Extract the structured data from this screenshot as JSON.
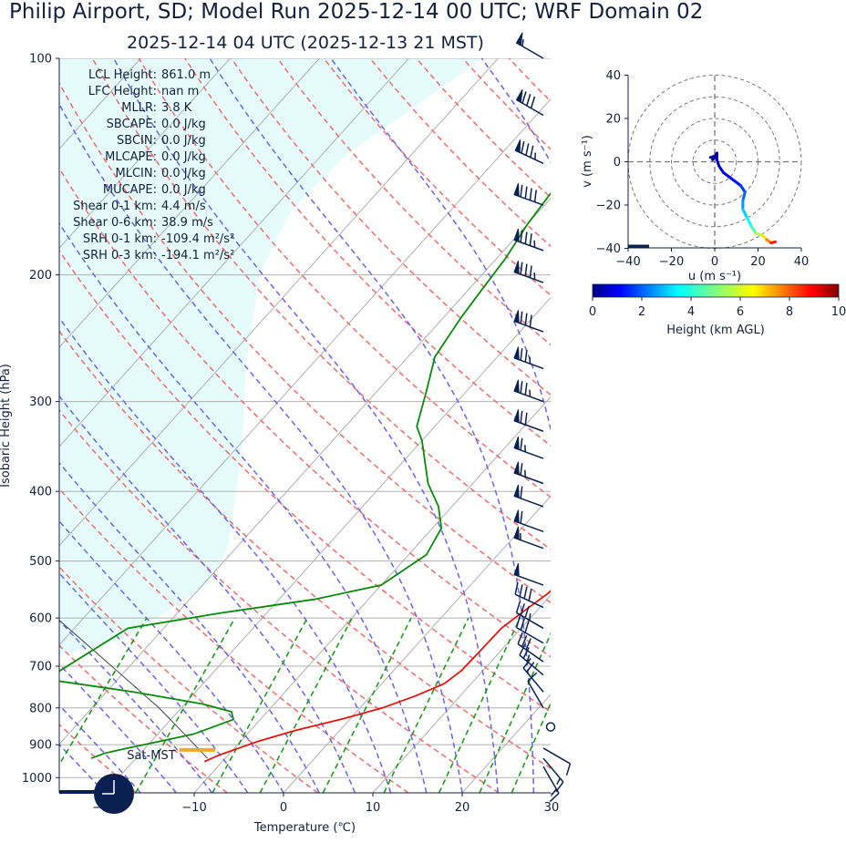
{
  "title": "Philip Airport, SD; Model Run 2025-12-14 00 UTC; WRF Domain 02",
  "subtitle": "2025-12-14 04 UTC  (2025-12-13 21 MST)",
  "chart_data": [
    {
      "type": "line",
      "name": "skew-t",
      "xlabel": "Temperature (℃)",
      "ylabel": "Isobaric Height (hPa)",
      "xlim": [
        -25,
        30
      ],
      "ylim": [
        1050,
        100
      ],
      "x_ticks": [
        "−20",
        "−10",
        "0",
        "10",
        "20",
        "30"
      ],
      "y_ticks": [
        "100",
        "200",
        "300",
        "400",
        "500",
        "600",
        "700",
        "800",
        "900",
        "1000"
      ],
      "grid": true,
      "temperature": [
        {
          "p": 950,
          "t": -12
        },
        {
          "p": 930,
          "t": -11
        },
        {
          "p": 910,
          "t": -9.5
        },
        {
          "p": 890,
          "t": -8
        },
        {
          "p": 860,
          "t": -5
        },
        {
          "p": 830,
          "t": -1
        },
        {
          "p": 800,
          "t": 2.5
        },
        {
          "p": 770,
          "t": 5
        },
        {
          "p": 740,
          "t": 7
        },
        {
          "p": 710,
          "t": 7.6
        },
        {
          "p": 670,
          "t": 7.7
        },
        {
          "p": 620,
          "t": 7.8
        },
        {
          "p": 590,
          "t": 8.5
        },
        {
          "p": 555,
          "t": 9.5
        },
        {
          "p": 520,
          "t": 9.8
        },
        {
          "p": 480,
          "t": 9
        },
        {
          "p": 445,
          "t": 7.5
        },
        {
          "p": 410,
          "t": 5.5
        },
        {
          "p": 370,
          "t": 3
        },
        {
          "p": 320,
          "t": -1
        },
        {
          "p": 290,
          "t": -3.5
        },
        {
          "p": 250,
          "t": -6
        },
        {
          "p": 220,
          "t": -7.5
        },
        {
          "p": 190,
          "t": -8.5
        },
        {
          "p": 185,
          "t": -9
        },
        {
          "p": 160,
          "t": -9
        },
        {
          "p": 140,
          "t": -8.5
        },
        {
          "p": 120,
          "t": -6
        },
        {
          "p": 100,
          "t": -4
        }
      ],
      "dewpoint": [
        {
          "p": 940,
          "t": -25
        },
        {
          "p": 925,
          "t": -24
        },
        {
          "p": 910,
          "t": -22
        },
        {
          "p": 890,
          "t": -19
        },
        {
          "p": 870,
          "t": -16
        },
        {
          "p": 850,
          "t": -14.5
        },
        {
          "p": 830,
          "t": -13
        },
        {
          "p": 810,
          "t": -14
        },
        {
          "p": 790,
          "t": -18
        },
        {
          "p": 760,
          "t": -27
        },
        {
          "p": 730,
          "t": -38
        },
        {
          "p": 620,
          "t": -34
        },
        {
          "p": 590,
          "t": -25
        },
        {
          "p": 565,
          "t": -16
        },
        {
          "p": 540,
          "t": -10
        },
        {
          "p": 490,
          "t": -8
        },
        {
          "p": 450,
          "t": -9
        },
        {
          "p": 420,
          "t": -11.5
        },
        {
          "p": 390,
          "t": -15
        },
        {
          "p": 340,
          "t": -20
        },
        {
          "p": 325,
          "t": -22
        },
        {
          "p": 290,
          "t": -24.5
        },
        {
          "p": 260,
          "t": -27
        },
        {
          "p": 230,
          "t": -28
        },
        {
          "p": 210,
          "t": -28.5
        },
        {
          "p": 190,
          "t": -29
        },
        {
          "p": 170,
          "t": -30
        },
        {
          "p": 140,
          "t": -31
        },
        {
          "p": 130,
          "t": -32.5
        },
        {
          "p": 120,
          "t": -35
        },
        {
          "p": 100,
          "t": -40
        }
      ],
      "parcel": [
        {
          "p": 940,
          "t": -12
        },
        {
          "p": 870,
          "t": -17
        },
        {
          "p": 800,
          "t": -22.5
        },
        {
          "p": 700,
          "t": -32
        },
        {
          "p": 600,
          "t": -43
        }
      ],
      "annotations": [
        {
          "label": "LCL Height:",
          "value": "861.0 m"
        },
        {
          "label": "LFC Height:",
          "value": "nan m"
        },
        {
          "label": "MLLR:",
          "value": "3.8 K"
        },
        {
          "label": "SBCAPE:",
          "value": "0.0 J/kg"
        },
        {
          "label": "SBCIN:",
          "value": "0.0 J/kg"
        },
        {
          "label": "MLCAPE:",
          "value": "0.0 J/kg"
        },
        {
          "label": "MLCIN:",
          "value": "0.0 J/kg"
        },
        {
          "label": "MUCAPE:",
          "value": "0.0 J/kg"
        },
        {
          "label": "Shear 0-1 km:",
          "value": "4.4 m/s"
        },
        {
          "label": "Shear 0-6 km:",
          "value": "38.9 m/s"
        },
        {
          "label": "SRH 0-1 km:",
          "value": "-109.4 m²/s²"
        },
        {
          "label": "SRH 0-3 km:",
          "value": "-194.1 m²/s²"
        }
      ],
      "marker": {
        "label": "Sat-MST",
        "p": 915,
        "t_min": -16,
        "t_max": -12,
        "color": "#f5a623"
      },
      "colors": {
        "temperature": "#e3160e",
        "dewpoint": "#0a8a0a",
        "parcel": "#444444",
        "dry_adiabat": "#ec6d6d",
        "moist_adiabat": "#6666ee",
        "mixing_ratio": "#1f9a1f",
        "cape_fill": "#e6fcfc",
        "wind_barb": "#0a2050"
      },
      "wind_barbs": [
        {
          "p": 100,
          "speed_kt": 55,
          "dir": 300
        },
        {
          "p": 120,
          "speed_kt": 80,
          "dir": 300
        },
        {
          "p": 140,
          "speed_kt": 85,
          "dir": 295
        },
        {
          "p": 160,
          "speed_kt": 90,
          "dir": 290
        },
        {
          "p": 185,
          "speed_kt": 85,
          "dir": 290
        },
        {
          "p": 205,
          "speed_kt": 85,
          "dir": 290
        },
        {
          "p": 240,
          "speed_kt": 80,
          "dir": 290
        },
        {
          "p": 270,
          "speed_kt": 75,
          "dir": 290
        },
        {
          "p": 300,
          "speed_kt": 75,
          "dir": 290
        },
        {
          "p": 330,
          "speed_kt": 70,
          "dir": 290
        },
        {
          "p": 360,
          "speed_kt": 65,
          "dir": 290
        },
        {
          "p": 390,
          "speed_kt": 65,
          "dir": 290
        },
        {
          "p": 420,
          "speed_kt": 60,
          "dir": 290
        },
        {
          "p": 455,
          "speed_kt": 60,
          "dir": 290
        },
        {
          "p": 480,
          "speed_kt": 55,
          "dir": 290
        },
        {
          "p": 540,
          "speed_kt": 50,
          "dir": 290
        },
        {
          "p": 580,
          "speed_kt": 40,
          "dir": 295
        },
        {
          "p": 620,
          "speed_kt": 35,
          "dir": 300
        },
        {
          "p": 650,
          "speed_kt": 30,
          "dir": 300
        },
        {
          "p": 690,
          "speed_kt": 30,
          "dir": 305
        },
        {
          "p": 720,
          "speed_kt": 25,
          "dir": 310
        },
        {
          "p": 760,
          "speed_kt": 20,
          "dir": 320
        },
        {
          "p": 800,
          "speed_kt": 10,
          "dir": 330
        },
        {
          "p": 850,
          "speed_kt": 0,
          "dir": 0
        },
        {
          "p": 910,
          "speed_kt": 10,
          "dir": 120
        },
        {
          "p": 940,
          "speed_kt": 15,
          "dir": 140
        },
        {
          "p": 965,
          "speed_kt": 15,
          "dir": 150
        }
      ],
      "clock_icon": "clock-icon"
    },
    {
      "type": "line",
      "name": "hodograph",
      "xlabel": "u (m s⁻¹)",
      "ylabel": "v (m s⁻¹)",
      "xlim": [
        -40,
        40
      ],
      "ylim": [
        -40,
        40
      ],
      "x_ticks": [
        "−40",
        "−20",
        "0",
        "20",
        "40"
      ],
      "y_ticks": [
        "−40",
        "−20",
        "0",
        "20",
        "40"
      ],
      "grid": true,
      "rings": [
        10,
        20,
        30,
        40
      ],
      "points": [
        {
          "u": -2,
          "v": 2,
          "h": 0
        },
        {
          "u": 1,
          "v": 3,
          "h": 0.1
        },
        {
          "u": -1,
          "v": 1,
          "h": 0.2
        },
        {
          "u": 1,
          "v": 4,
          "h": 0.3
        },
        {
          "u": 1,
          "v": 1,
          "h": 0.4
        },
        {
          "u": 2,
          "v": -2,
          "h": 0.6
        },
        {
          "u": 4,
          "v": -5,
          "h": 0.9
        },
        {
          "u": 8,
          "v": -8,
          "h": 1.2
        },
        {
          "u": 12,
          "v": -11,
          "h": 1.6
        },
        {
          "u": 14,
          "v": -14,
          "h": 2.0
        },
        {
          "u": 13,
          "v": -18,
          "h": 2.5
        },
        {
          "u": 13,
          "v": -22,
          "h": 3.0
        },
        {
          "u": 15,
          "v": -26,
          "h": 3.5
        },
        {
          "u": 17,
          "v": -30,
          "h": 4.0
        },
        {
          "u": 19,
          "v": -33,
          "h": 5.0
        },
        {
          "u": 22,
          "v": -34,
          "h": 6.0
        },
        {
          "u": 24,
          "v": -36,
          "h": 7.0
        },
        {
          "u": 26,
          "v": -37.5,
          "h": 8.0
        },
        {
          "u": 28,
          "v": -37,
          "h": 9.0
        }
      ]
    },
    {
      "type": "heatmap",
      "name": "height-colorbar",
      "xlabel": "Height (km AGL)",
      "range": [
        0,
        10
      ],
      "ticks": [
        "0",
        "2",
        "4",
        "6",
        "8",
        "10"
      ],
      "colormap": "jet"
    }
  ]
}
